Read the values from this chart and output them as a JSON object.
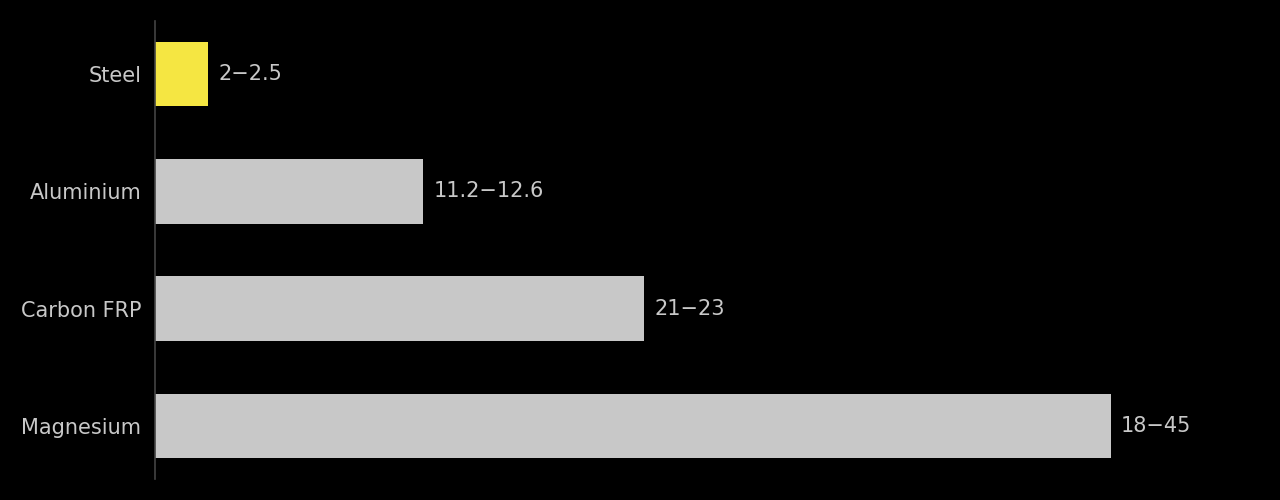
{
  "categories": [
    "Steel",
    "Aluminium",
    "Carbon FRP",
    "Magnesium"
  ],
  "values": [
    2.5,
    12.6,
    23,
    45
  ],
  "bar_colors": [
    "#f5e642",
    "#c8c8c8",
    "#c8c8c8",
    "#c8c8c8"
  ],
  "labels": [
    "2−2.5",
    "11.2−12.6",
    "21−23",
    "18−45"
  ],
  "background_color": "#000000",
  "text_color": "#c8c8c8",
  "label_color": "#c8c8c8",
  "bar_height": 0.55,
  "xlim": [
    0,
    52
  ],
  "label_font_size": 15,
  "y_tick_font_size": 15
}
